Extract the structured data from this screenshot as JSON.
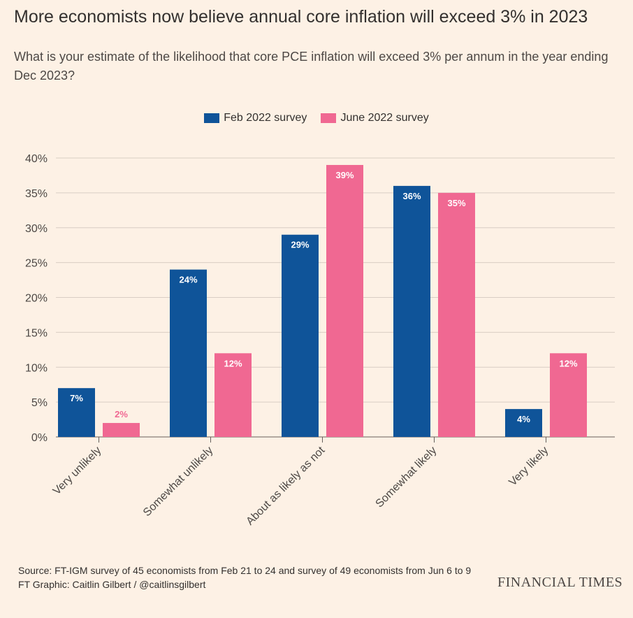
{
  "title": "More economists now believe annual core inflation will exceed 3% in 2023",
  "subtitle": "What is your estimate of the likelihood that core PCE inflation will exceed 3% per annum in the year ending Dec 2023?",
  "source": "Source: FT-IGM survey of 45 economists from Feb 21 to 24 and survey of 49 economists from Jun 6 to 9",
  "credit": "FT Graphic: Caitlin Gilbert / @caitlinsgilbert",
  "brand": "FINANCIAL TIMES",
  "colors": {
    "background": "#fdf1e5",
    "feb": "#0f5499",
    "june": "#f06892",
    "grid": "#d9cec4",
    "text": "#33302e"
  },
  "chart_data": {
    "type": "bar",
    "categories": [
      "Very unlikely",
      "Somewhat unlikely",
      "About as likely as not",
      "Somewhat likely",
      "Very likely"
    ],
    "series": [
      {
        "name": "Feb 2022 survey",
        "values": [
          7,
          24,
          29,
          36,
          4
        ],
        "labels": [
          "7%",
          "24%",
          "29%",
          "36%",
          "4%"
        ]
      },
      {
        "name": "June 2022 survey",
        "values": [
          2,
          12,
          39,
          35,
          12
        ],
        "labels": [
          "2%",
          "12%",
          "39%",
          "35%",
          "12%"
        ]
      }
    ],
    "ylim": [
      0,
      40
    ],
    "yticks": [
      0,
      5,
      10,
      15,
      20,
      25,
      30,
      35,
      40
    ],
    "ytick_labels": [
      "0%",
      "5%",
      "10%",
      "15%",
      "20%",
      "25%",
      "30%",
      "35%",
      "40%"
    ],
    "legend": "top-center",
    "grid": true
  }
}
